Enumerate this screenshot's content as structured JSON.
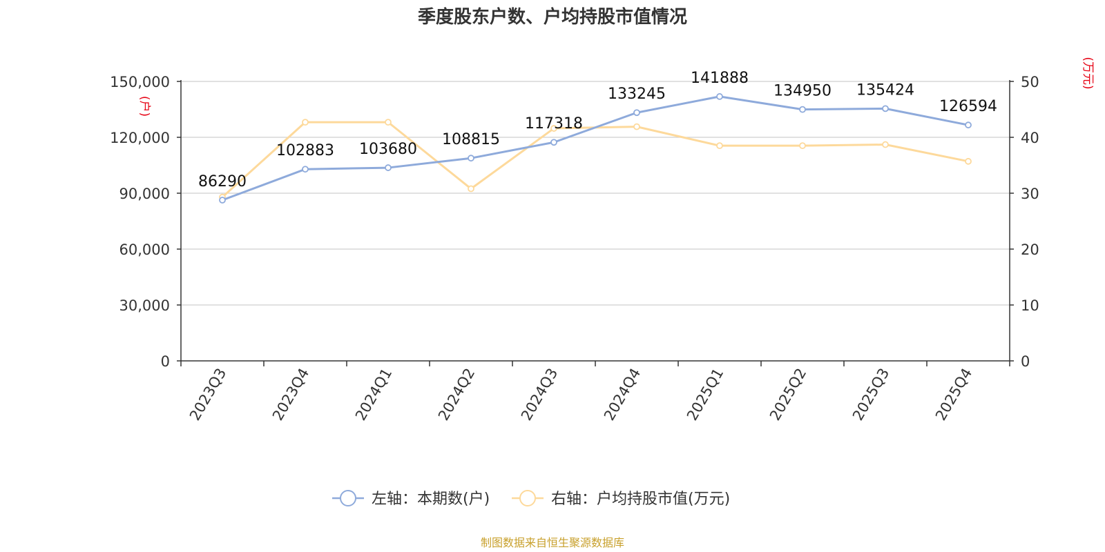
{
  "chart_data": {
    "type": "line",
    "title": "季度股东户数、户均持股市值情况",
    "categories": [
      "2023Q3",
      "2023Q4",
      "2024Q1",
      "2024Q2",
      "2024Q3",
      "2024Q4",
      "2025Q1",
      "2025Q2",
      "2025Q3",
      "2025Q4"
    ],
    "y_left": {
      "unit": "(户)",
      "range": [
        0,
        150000
      ],
      "ticks": [
        "0",
        "30,000",
        "60,000",
        "90,000",
        "120,000",
        "150,000"
      ]
    },
    "y_right": {
      "unit": "(万元)",
      "range": [
        0,
        50
      ],
      "ticks": [
        "0",
        "10",
        "20",
        "30",
        "40",
        "50"
      ]
    },
    "grid": true,
    "series": [
      {
        "name": "左轴：本期数(户)",
        "axis": "left",
        "color": "#8eaadb",
        "values": [
          86290,
          102883,
          103680,
          108815,
          117318,
          133245,
          141888,
          134950,
          135424,
          126594
        ],
        "labels": [
          "86290",
          "102883",
          "103680",
          "108815",
          "117318",
          "133245",
          "141888",
          "134950",
          "135424",
          "126594"
        ]
      },
      {
        "name": "右轴：户均持股市值(万元)",
        "axis": "right",
        "color": "#fdd99b",
        "values": [
          29.3,
          42.7,
          42.7,
          30.8,
          41.6,
          41.9,
          38.5,
          38.5,
          38.7,
          35.7
        ]
      }
    ],
    "legend_position": "bottom",
    "source": "制图数据来自恒生聚源数据库"
  }
}
